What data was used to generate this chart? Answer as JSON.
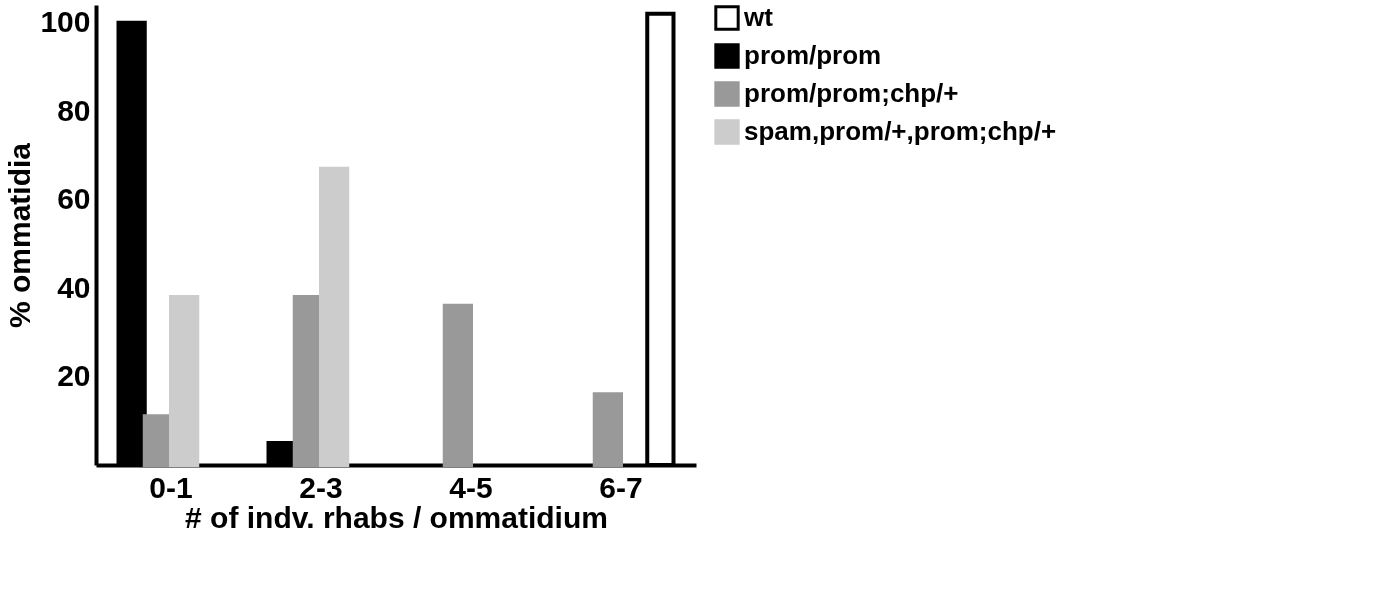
{
  "chart_data": {
    "type": "bar",
    "xlabel": "# of indv. rhabs / ommatidium",
    "ylabel": "% ommatidia",
    "categories": [
      "0-1",
      "2-3",
      "4-5",
      "6-7"
    ],
    "series": [
      {
        "name": "prom/prom",
        "color": "#000000",
        "values": [
          100,
          5,
          null,
          null
        ]
      },
      {
        "name": "prom/prom;chp/+",
        "color": "#999999",
        "values": [
          11,
          38,
          36,
          16
        ]
      },
      {
        "name": "spam,prom/+,prom;chp/+",
        "color": "#cccccc",
        "values": [
          38,
          67,
          null,
          null
        ]
      },
      {
        "name": "wt",
        "color": "#ffffff",
        "values": [
          null,
          null,
          null,
          102
        ]
      }
    ],
    "ylim": [
      0,
      104
    ],
    "yticks": [
      20,
      40,
      60,
      80,
      100
    ],
    "grid": false,
    "legend": "right"
  }
}
